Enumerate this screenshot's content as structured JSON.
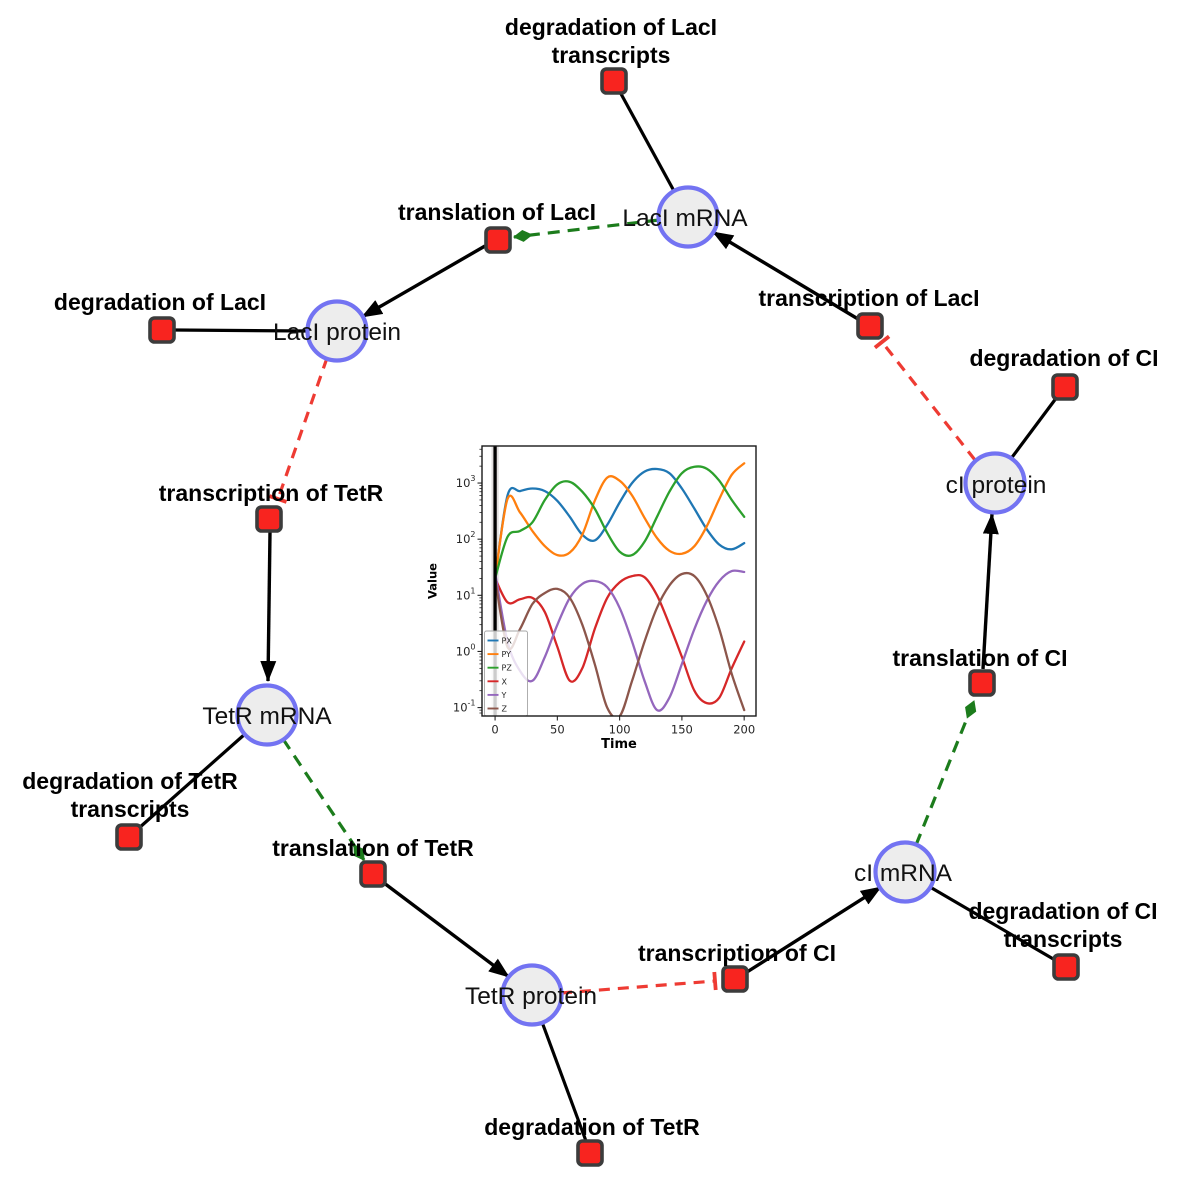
{
  "network": {
    "species": [
      {
        "id": "laci-mrna",
        "label": "LacI mRNA"
      },
      {
        "id": "laci-protein",
        "label": "LacI protein"
      },
      {
        "id": "ci-protein",
        "label": "cI protein"
      },
      {
        "id": "tetr-mrna",
        "label": "TetR mRNA"
      },
      {
        "id": "ci-mrna",
        "label": "cI mRNA"
      },
      {
        "id": "tetr-protein",
        "label": "TetR protein"
      }
    ],
    "reactions": [
      {
        "id": "degradation-of-laci-transcripts",
        "line1": "degradation of LacI",
        "line2": "transcripts"
      },
      {
        "id": "translation-of-laci",
        "label": "translation of LacI"
      },
      {
        "id": "transcription-of-laci",
        "label": "transcription of LacI"
      },
      {
        "id": "degradation-of-laci",
        "label": "degradation of LacI"
      },
      {
        "id": "degradation-of-ci",
        "label": "degradation of CI"
      },
      {
        "id": "transcription-of-tetr",
        "label": "transcription of TetR"
      },
      {
        "id": "translation-of-ci",
        "label": "translation of CI"
      },
      {
        "id": "degradation-of-tetr-transcripts",
        "line1": "degradation of TetR",
        "line2": "transcripts"
      },
      {
        "id": "translation-of-tetr",
        "label": "translation of TetR"
      },
      {
        "id": "transcription-of-ci",
        "label": "transcription of CI"
      },
      {
        "id": "degradation-of-ci-transcripts",
        "line1": "degradation of CI",
        "line2": "transcripts"
      },
      {
        "id": "degradation-of-tetr",
        "label": "degradation of TetR"
      }
    ],
    "edges": [
      {
        "type": "production",
        "from": "transcription of LacI",
        "to": "LacI mRNA"
      },
      {
        "type": "production",
        "from": "translation of LacI",
        "to": "LacI protein"
      },
      {
        "type": "production",
        "from": "transcription of TetR",
        "to": "TetR mRNA"
      },
      {
        "type": "production",
        "from": "translation of TetR",
        "to": "TetR protein"
      },
      {
        "type": "production",
        "from": "transcription of CI",
        "to": "cI mRNA"
      },
      {
        "type": "production",
        "from": "translation of CI",
        "to": "cI protein"
      },
      {
        "type": "consumption",
        "from": "LacI mRNA",
        "to": "degradation of LacI transcripts"
      },
      {
        "type": "consumption",
        "from": "LacI protein",
        "to": "degradation of LacI"
      },
      {
        "type": "consumption",
        "from": "cI protein",
        "to": "degradation of CI"
      },
      {
        "type": "consumption",
        "from": "TetR mRNA",
        "to": "degradation of TetR transcripts"
      },
      {
        "type": "consumption",
        "from": "cI mRNA",
        "to": "degradation of CI transcripts"
      },
      {
        "type": "consumption",
        "from": "TetR protein",
        "to": "degradation of TetR"
      },
      {
        "type": "modifier",
        "from": "LacI mRNA",
        "to": "translation of LacI"
      },
      {
        "type": "modifier",
        "from": "TetR mRNA",
        "to": "translation of TetR"
      },
      {
        "type": "modifier",
        "from": "cI mRNA",
        "to": "translation of CI"
      },
      {
        "type": "inhibition",
        "from": "LacI protein",
        "to": "transcription of TetR"
      },
      {
        "type": "inhibition",
        "from": "cI protein",
        "to": "transcription of LacI"
      },
      {
        "type": "inhibition",
        "from": "TetR protein",
        "to": "transcription of CI"
      }
    ],
    "colors": {
      "species_fill": "#ededed",
      "species_stroke": "#7373f2",
      "reaction_fill": "#f8241f",
      "reaction_stroke": "#3c3c3c",
      "production_edge": "#000000",
      "inhibition_edge": "#ee3b33",
      "modifier_edge": "#1c7c1c"
    }
  },
  "chart_data": {
    "type": "line",
    "title": "",
    "xlabel": "Time",
    "ylabel": "Value",
    "x_ticks": [
      0,
      50,
      100,
      150,
      200
    ],
    "y_tick_exponents": [
      -1,
      0,
      1,
      2,
      3
    ],
    "xlim": [
      -10.5,
      209.5
    ],
    "ylog10_lim": [
      -1.15,
      3.66
    ],
    "grid": false,
    "legend_position": "lower left",
    "marker_line_x": 0,
    "x": [
      0,
      10,
      20,
      30,
      40,
      50,
      60,
      70,
      80,
      90,
      100,
      110,
      120,
      130,
      140,
      150,
      160,
      170,
      180,
      190,
      200
    ],
    "series": [
      {
        "name": "PX",
        "color": "#1f77b4",
        "values": [
          20,
          600,
          720,
          800,
          720,
          480,
          250,
          120,
          95,
          180,
          450,
          1000,
          1600,
          1780,
          1500,
          800,
          350,
          150,
          80,
          66,
          85
        ]
      },
      {
        "name": "PY",
        "color": "#ff7f0e",
        "values": [
          20,
          520,
          300,
          140,
          75,
          52,
          58,
          120,
          480,
          1250,
          1100,
          600,
          240,
          105,
          62,
          55,
          75,
          170,
          520,
          1400,
          2250
        ]
      },
      {
        "name": "PZ",
        "color": "#2ca02c",
        "values": [
          20,
          110,
          140,
          200,
          500,
          950,
          1050,
          700,
          350,
          130,
          60,
          52,
          90,
          250,
          700,
          1500,
          1950,
          1800,
          1100,
          500,
          250
        ]
      },
      {
        "name": "X",
        "color": "#d62728",
        "values": [
          20,
          7.5,
          8.5,
          9,
          5,
          1.2,
          0.3,
          0.5,
          2.5,
          9,
          17,
          22,
          21,
          10,
          3,
          0.8,
          0.2,
          0.12,
          0.15,
          0.5,
          1.5
        ]
      },
      {
        "name": "Y",
        "color": "#9467bd",
        "values": [
          25,
          1.5,
          0.45,
          0.3,
          0.8,
          3,
          9,
          16,
          18,
          14,
          6,
          1.5,
          0.3,
          0.09,
          0.15,
          0.6,
          2.5,
          8,
          18,
          27,
          26
        ]
      },
      {
        "name": "Z",
        "color": "#8c564b",
        "values": [
          20,
          1.2,
          2.5,
          7,
          11,
          13,
          9,
          3,
          0.6,
          0.1,
          0.07,
          0.3,
          1.5,
          6,
          15,
          24,
          22,
          10,
          2.5,
          0.4,
          0.09
        ]
      }
    ]
  }
}
